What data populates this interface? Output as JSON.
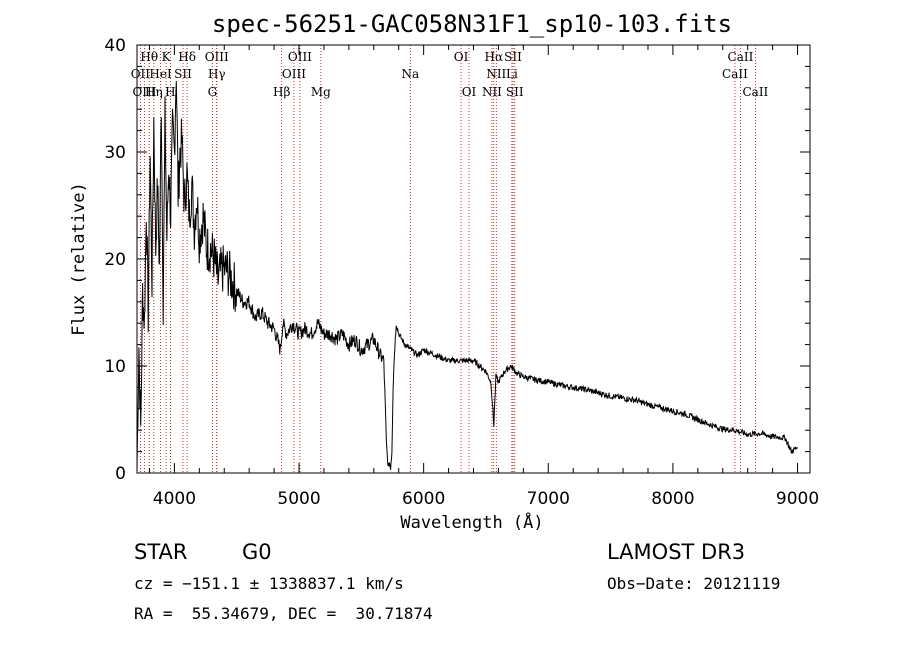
{
  "chart_data": {
    "type": "line",
    "title": "spec-56251-GAC058N31F1_sp10-103.fits",
    "xlabel": "Wavelength (Å)",
    "ylabel": "Flux (relative)",
    "xlim": [
      3700,
      9100
    ],
    "ylim": [
      0,
      40
    ],
    "xticks": [
      4000,
      5000,
      6000,
      7000,
      8000,
      9000
    ],
    "yticks": [
      0,
      10,
      20,
      30,
      40
    ],
    "grid": false,
    "series": [
      {
        "name": "flux",
        "x": [
          3700,
          3715,
          3730,
          3745,
          3760,
          3775,
          3790,
          3805,
          3820,
          3835,
          3850,
          3865,
          3880,
          3895,
          3910,
          3925,
          3940,
          3955,
          3970,
          3985,
          4000,
          4015,
          4030,
          4045,
          4060,
          4080,
          4100,
          4120,
          4140,
          4160,
          4180,
          4200,
          4230,
          4260,
          4290,
          4320,
          4350,
          4380,
          4420,
          4460,
          4500,
          4550,
          4600,
          4650,
          4700,
          4750,
          4800,
          4850,
          4870,
          4900,
          4950,
          5000,
          5050,
          5100,
          5150,
          5200,
          5250,
          5300,
          5350,
          5400,
          5450,
          5500,
          5550,
          5600,
          5650,
          5680,
          5700,
          5715,
          5725,
          5735,
          5745,
          5755,
          5765,
          5780,
          5800,
          5850,
          5900,
          5950,
          6000,
          6100,
          6200,
          6300,
          6400,
          6450,
          6500,
          6540,
          6563,
          6580,
          6600,
          6650,
          6700,
          6750,
          6800,
          6900,
          7000,
          7100,
          7200,
          7300,
          7400,
          7500,
          7600,
          7700,
          7800,
          7900,
          8000,
          8100,
          8200,
          8300,
          8400,
          8500,
          8600,
          8700,
          8800,
          8900,
          8950,
          9000
        ],
        "values": [
          0.5,
          12,
          4,
          17,
          14,
          25,
          15,
          30,
          18,
          33,
          21,
          27,
          19,
          35,
          16,
          33,
          22,
          29,
          24,
          32,
          30,
          38,
          26,
          30,
          31,
          25,
          28,
          24,
          27,
          23,
          26,
          22,
          24,
          21,
          21,
          20,
          18,
          19,
          19,
          18,
          17,
          16,
          16,
          14.5,
          15,
          14,
          13.5,
          11.5,
          14,
          13,
          14,
          13,
          13.5,
          13,
          14,
          13,
          13,
          12.5,
          13,
          12,
          12.5,
          11.5,
          12,
          12.5,
          11,
          10.5,
          3,
          0.5,
          1,
          0.5,
          2,
          8,
          11,
          14,
          13,
          12,
          11.5,
          11,
          11.5,
          11,
          10.5,
          10.5,
          10.5,
          10,
          9.5,
          8.5,
          4.5,
          9,
          8.5,
          9.5,
          10,
          9.3,
          9,
          8.7,
          8.5,
          8.2,
          8,
          7.8,
          7.5,
          7.2,
          7,
          6.8,
          6.4,
          6.1,
          5.8,
          5.5,
          5,
          4.5,
          4.1,
          4,
          3.6,
          3.7,
          3.4,
          3.3,
          2,
          2.4
        ]
      }
    ],
    "line_markers": [
      {
        "label": "Hθ",
        "x": 3798,
        "row": 0
      },
      {
        "label": "K",
        "x": 3934,
        "row": 0
      },
      {
        "label": "Hδ",
        "x": 4102,
        "row": 0
      },
      {
        "label": "OIII",
        "x": 4340,
        "row": 0
      },
      {
        "label": "OIII",
        "x": 5007,
        "row": 0
      },
      {
        "label": "OI",
        "x": 6300,
        "row": 0
      },
      {
        "label": "Hα",
        "x": 6563,
        "row": 0
      },
      {
        "label": "SII",
        "x": 6717,
        "row": 0
      },
      {
        "label": "CaII",
        "x": 8542,
        "row": 0
      },
      {
        "label": "OII",
        "x": 3727,
        "row": 1
      },
      {
        "label": "HeI",
        "x": 3889,
        "row": 1
      },
      {
        "label": "SII",
        "x": 4069,
        "row": 1
      },
      {
        "label": "Hγ",
        "x": 4340,
        "row": 1
      },
      {
        "label": "OIII",
        "x": 4959,
        "row": 1
      },
      {
        "label": "Na",
        "x": 5893,
        "row": 1
      },
      {
        "label": "NII",
        "x": 6583,
        "row": 1
      },
      {
        "label": "Li",
        "x": 6708,
        "row": 1
      },
      {
        "label": "CaII",
        "x": 8498,
        "row": 1
      },
      {
        "label": "OIII",
        "x": 3760,
        "row": 2
      },
      {
        "label": "Hη",
        "x": 3835,
        "row": 2
      },
      {
        "label": "H",
        "x": 3968,
        "row": 2
      },
      {
        "label": "G",
        "x": 4305,
        "row": 2
      },
      {
        "label": "Hβ",
        "x": 4861,
        "row": 2
      },
      {
        "label": "Mg",
        "x": 5175,
        "row": 2
      },
      {
        "label": "OI",
        "x": 6364,
        "row": 2
      },
      {
        "label": "NII",
        "x": 6548,
        "row": 2
      },
      {
        "label": "SII",
        "x": 6731,
        "row": 2
      },
      {
        "label": "CaII",
        "x": 8662,
        "row": 2
      }
    ]
  },
  "info": {
    "object_type": "STAR",
    "subclass": "G0",
    "survey": "LAMOST DR3",
    "cz": "cz = −151.1 ± 1338837.1 km/s",
    "obs_date": "Obs−Date: 20121119",
    "coords": "RA =  55.34679, DEC =  30.71874"
  }
}
